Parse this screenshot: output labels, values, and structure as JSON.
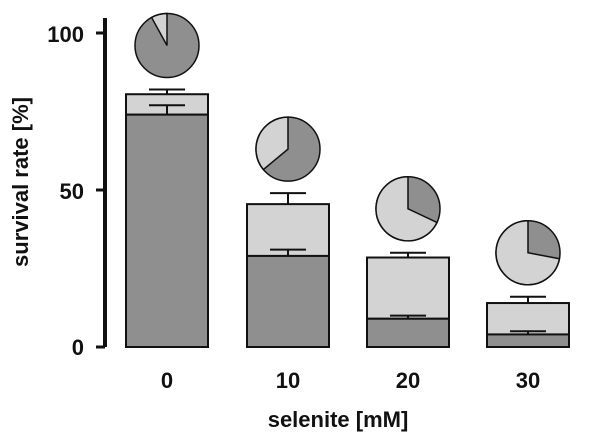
{
  "chart_data": {
    "type": "bar",
    "stacked": true,
    "xlabel": "selenite [mM]",
    "ylabel": "survival rate [%]",
    "categories": [
      "0",
      "10",
      "20",
      "30"
    ],
    "ylim": [
      0,
      100
    ],
    "yticks": [
      "0",
      "50",
      "100"
    ],
    "series": [
      {
        "values": [
          74,
          29,
          9,
          4
        ],
        "error_plus": [
          3,
          2,
          1,
          1
        ],
        "color": "#8f8f8f"
      },
      {
        "values": [
          6.5,
          16.5,
          19.5,
          10
        ],
        "error_plus": [
          1.5,
          3.5,
          1.5,
          2
        ],
        "color": "#d3d3d3"
      }
    ],
    "totals": [
      80.5,
      45.5,
      28.5,
      14
    ],
    "pie_insets": [
      {
        "category": "0",
        "dark_fraction": 0.92,
        "light_fraction": 0.08
      },
      {
        "category": "10",
        "dark_fraction": 0.64,
        "light_fraction": 0.36
      },
      {
        "category": "20",
        "dark_fraction": 0.32,
        "light_fraction": 0.68
      },
      {
        "category": "30",
        "dark_fraction": 0.28,
        "light_fraction": 0.72
      }
    ]
  }
}
